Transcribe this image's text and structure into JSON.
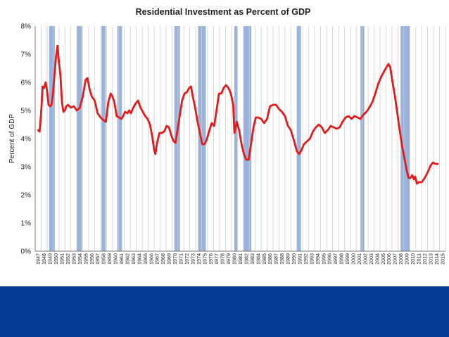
{
  "chart_data": {
    "type": "line",
    "title": "Residential Investment as Percent of GDP",
    "ylabel": "Percent of GDP",
    "xlabel": "",
    "ylim": [
      0,
      8
    ],
    "xlim": [
      1947,
      2015
    ],
    "yticks": [
      0,
      1,
      2,
      3,
      4,
      5,
      6,
      7,
      8
    ],
    "ytick_labels": [
      "0%",
      "1%",
      "2%",
      "3%",
      "4%",
      "5%",
      "6%",
      "7%",
      "8%"
    ],
    "xtick_labels": [
      "1947",
      "1948",
      "1949",
      "1950",
      "1951",
      "1952",
      "1953",
      "1954",
      "1955",
      "1956",
      "1957",
      "1958",
      "1959",
      "1960",
      "1961",
      "1962",
      "1963",
      "1964",
      "1965",
      "1966",
      "1967",
      "1968",
      "1969",
      "1970",
      "1971",
      "1972",
      "1973",
      "1974",
      "1975",
      "1976",
      "1977",
      "1978",
      "1979",
      "1980",
      "1981",
      "1982",
      "1983",
      "1984",
      "1985",
      "1986",
      "1987",
      "1988",
      "1989",
      "1990",
      "1991",
      "1992",
      "1993",
      "1994",
      "1995",
      "1996",
      "1997",
      "1998",
      "1999",
      "2000",
      "2001",
      "2002",
      "2003",
      "2004",
      "2005",
      "2006",
      "2007",
      "2008",
      "2009",
      "2010",
      "2011",
      "2012",
      "2013",
      "2014",
      "2015"
    ],
    "grid": "vertical",
    "series": [
      {
        "color": "#e31b1b",
        "points": [
          [
            1947.0,
            4.3
          ],
          [
            1947.25,
            4.25
          ],
          [
            1947.5,
            4.9
          ],
          [
            1947.75,
            5.85
          ],
          [
            1948.0,
            5.8
          ],
          [
            1948.25,
            6.0
          ],
          [
            1948.5,
            5.7
          ],
          [
            1948.75,
            5.2
          ],
          [
            1949.0,
            5.15
          ],
          [
            1949.25,
            5.2
          ],
          [
            1949.5,
            5.6
          ],
          [
            1949.75,
            6.3
          ],
          [
            1950.0,
            6.9
          ],
          [
            1950.25,
            7.3
          ],
          [
            1950.5,
            6.7
          ],
          [
            1950.75,
            6.25
          ],
          [
            1951.0,
            5.3
          ],
          [
            1951.25,
            4.95
          ],
          [
            1951.5,
            5.0
          ],
          [
            1951.75,
            5.15
          ],
          [
            1952.0,
            5.2
          ],
          [
            1952.5,
            5.1
          ],
          [
            1953.0,
            5.15
          ],
          [
            1953.5,
            5.0
          ],
          [
            1954.0,
            5.1
          ],
          [
            1954.5,
            5.5
          ],
          [
            1955.0,
            6.1
          ],
          [
            1955.3,
            6.15
          ],
          [
            1955.6,
            5.8
          ],
          [
            1956.0,
            5.5
          ],
          [
            1956.5,
            5.35
          ],
          [
            1957.0,
            4.9
          ],
          [
            1957.5,
            4.75
          ],
          [
            1958.0,
            4.65
          ],
          [
            1958.4,
            4.6
          ],
          [
            1958.8,
            5.3
          ],
          [
            1959.2,
            5.6
          ],
          [
            1959.5,
            5.5
          ],
          [
            1959.8,
            5.3
          ],
          [
            1960.2,
            4.8
          ],
          [
            1960.6,
            4.75
          ],
          [
            1961.0,
            4.7
          ],
          [
            1961.3,
            4.8
          ],
          [
            1961.6,
            4.95
          ],
          [
            1962.0,
            4.9
          ],
          [
            1962.3,
            5.0
          ],
          [
            1962.6,
            4.9
          ],
          [
            1963.0,
            5.1
          ],
          [
            1963.4,
            5.25
          ],
          [
            1963.8,
            5.35
          ],
          [
            1964.2,
            5.1
          ],
          [
            1964.6,
            4.95
          ],
          [
            1965.0,
            4.8
          ],
          [
            1965.4,
            4.7
          ],
          [
            1965.8,
            4.5
          ],
          [
            1966.2,
            4.05
          ],
          [
            1966.5,
            3.6
          ],
          [
            1966.7,
            3.45
          ],
          [
            1967.0,
            3.85
          ],
          [
            1967.4,
            4.2
          ],
          [
            1967.8,
            4.2
          ],
          [
            1968.2,
            4.25
          ],
          [
            1968.6,
            4.45
          ],
          [
            1969.0,
            4.4
          ],
          [
            1969.4,
            4.1
          ],
          [
            1969.8,
            3.9
          ],
          [
            1970.1,
            3.85
          ],
          [
            1970.4,
            4.25
          ],
          [
            1970.8,
            4.8
          ],
          [
            1971.2,
            5.35
          ],
          [
            1971.6,
            5.6
          ],
          [
            1972.0,
            5.65
          ],
          [
            1972.4,
            5.8
          ],
          [
            1972.7,
            5.85
          ],
          [
            1973.0,
            5.5
          ],
          [
            1973.4,
            5.1
          ],
          [
            1973.8,
            4.6
          ],
          [
            1974.2,
            4.2
          ],
          [
            1974.6,
            3.8
          ],
          [
            1975.0,
            3.8
          ],
          [
            1975.4,
            4.0
          ],
          [
            1975.8,
            4.3
          ],
          [
            1976.2,
            4.55
          ],
          [
            1976.6,
            4.45
          ],
          [
            1977.0,
            5.0
          ],
          [
            1977.4,
            5.6
          ],
          [
            1977.8,
            5.6
          ],
          [
            1978.2,
            5.8
          ],
          [
            1978.6,
            5.9
          ],
          [
            1979.0,
            5.8
          ],
          [
            1979.4,
            5.6
          ],
          [
            1979.8,
            5.2
          ],
          [
            1980.0,
            4.2
          ],
          [
            1980.4,
            4.6
          ],
          [
            1980.8,
            4.3
          ],
          [
            1981.2,
            3.8
          ],
          [
            1981.6,
            3.45
          ],
          [
            1982.0,
            3.25
          ],
          [
            1982.4,
            3.25
          ],
          [
            1982.8,
            3.8
          ],
          [
            1983.2,
            4.4
          ],
          [
            1983.6,
            4.75
          ],
          [
            1984.0,
            4.75
          ],
          [
            1984.5,
            4.7
          ],
          [
            1985.0,
            4.55
          ],
          [
            1985.5,
            4.7
          ],
          [
            1986.0,
            5.15
          ],
          [
            1986.5,
            5.2
          ],
          [
            1987.0,
            5.2
          ],
          [
            1987.5,
            5.05
          ],
          [
            1988.0,
            4.95
          ],
          [
            1988.5,
            4.8
          ],
          [
            1989.0,
            4.45
          ],
          [
            1989.5,
            4.3
          ],
          [
            1990.0,
            3.95
          ],
          [
            1990.5,
            3.55
          ],
          [
            1990.9,
            3.45
          ],
          [
            1991.3,
            3.6
          ],
          [
            1991.7,
            3.8
          ],
          [
            1992.2,
            3.9
          ],
          [
            1992.7,
            4.0
          ],
          [
            1993.2,
            4.25
          ],
          [
            1993.7,
            4.4
          ],
          [
            1994.2,
            4.5
          ],
          [
            1994.7,
            4.4
          ],
          [
            1995.2,
            4.2
          ],
          [
            1995.7,
            4.3
          ],
          [
            1996.2,
            4.45
          ],
          [
            1996.7,
            4.4
          ],
          [
            1997.2,
            4.35
          ],
          [
            1997.7,
            4.4
          ],
          [
            1998.2,
            4.6
          ],
          [
            1998.7,
            4.75
          ],
          [
            1999.2,
            4.8
          ],
          [
            1999.7,
            4.7
          ],
          [
            2000.2,
            4.8
          ],
          [
            2000.7,
            4.75
          ],
          [
            2001.2,
            4.7
          ],
          [
            2001.7,
            4.85
          ],
          [
            2002.2,
            4.95
          ],
          [
            2002.7,
            5.1
          ],
          [
            2003.2,
            5.3
          ],
          [
            2003.7,
            5.6
          ],
          [
            2004.2,
            5.95
          ],
          [
            2004.7,
            6.2
          ],
          [
            2005.2,
            6.4
          ],
          [
            2005.6,
            6.55
          ],
          [
            2005.9,
            6.65
          ],
          [
            2006.2,
            6.55
          ],
          [
            2006.6,
            6.0
          ],
          [
            2007.0,
            5.5
          ],
          [
            2007.4,
            4.9
          ],
          [
            2007.8,
            4.3
          ],
          [
            2008.2,
            3.75
          ],
          [
            2008.6,
            3.3
          ],
          [
            2009.0,
            2.85
          ],
          [
            2009.3,
            2.6
          ],
          [
            2009.6,
            2.6
          ],
          [
            2009.9,
            2.7
          ],
          [
            2010.2,
            2.55
          ],
          [
            2010.4,
            2.65
          ],
          [
            2010.7,
            2.4
          ],
          [
            2011.0,
            2.45
          ],
          [
            2011.5,
            2.45
          ],
          [
            2012.0,
            2.6
          ],
          [
            2012.5,
            2.8
          ],
          [
            2013.0,
            3.05
          ],
          [
            2013.4,
            3.15
          ],
          [
            2013.8,
            3.1
          ],
          [
            2014.2,
            3.1
          ]
        ]
      }
    ],
    "recessions": [
      [
        1948.85,
        1949.8
      ],
      [
        1953.5,
        1954.35
      ],
      [
        1957.65,
        1958.35
      ],
      [
        1960.3,
        1961.1
      ],
      [
        1969.9,
        1970.85
      ],
      [
        1973.9,
        1975.2
      ],
      [
        1980.0,
        1980.55
      ],
      [
        1981.55,
        1982.85
      ],
      [
        1990.5,
        1991.2
      ],
      [
        2001.2,
        2001.85
      ],
      [
        2007.95,
        2009.5
      ]
    ],
    "colors": {
      "line": "#e31b1b",
      "recession": "#9ab3dd",
      "grid": "#cfcfcf",
      "footer": "#063a94"
    }
  }
}
